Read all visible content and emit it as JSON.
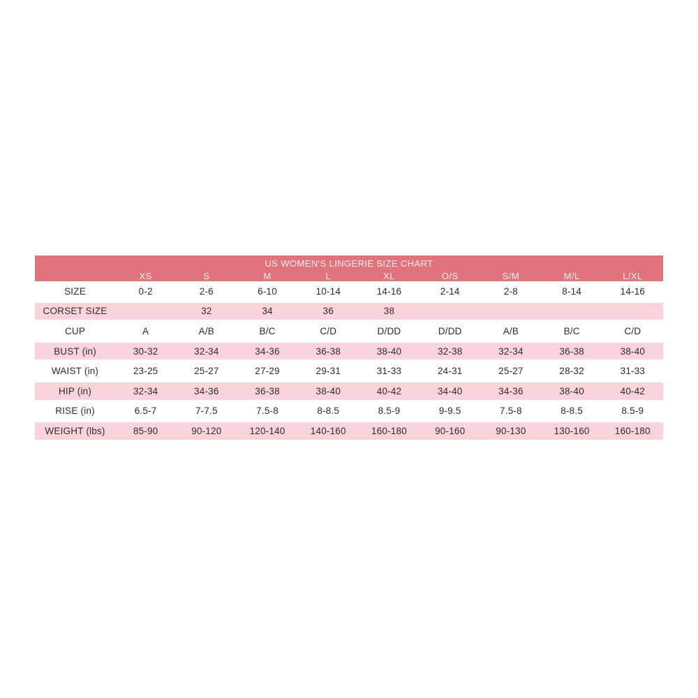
{
  "title": "US WOMEN'S LINGERIE SIZE CHART",
  "colors": {
    "header_bg": "#e1737c",
    "header_text": "#fbeef0",
    "stripe_bg": "#f9d4da",
    "body_text": "#2e2c2d",
    "page_bg": "#ffffff"
  },
  "chart_data": {
    "type": "table",
    "title": "US WOMEN'S LINGERIE SIZE CHART",
    "columns": [
      "",
      "XS",
      "S",
      "M",
      "L",
      "XL",
      "O/S",
      "S/M",
      "M/L",
      "L/XL"
    ],
    "rows": [
      {
        "label": "SIZE",
        "striped": false,
        "values": [
          "0-2",
          "2-6",
          "6-10",
          "10-14",
          "14-16",
          "2-14",
          "2-8",
          "8-14",
          "14-16"
        ]
      },
      {
        "label": "CORSET SIZE",
        "striped": true,
        "values": [
          "",
          "32",
          "34",
          "36",
          "38",
          "",
          "",
          "",
          ""
        ]
      },
      {
        "label": "CUP",
        "striped": false,
        "values": [
          "A",
          "A/B",
          "B/C",
          "C/D",
          "D/DD",
          "D/DD",
          "A/B",
          "B/C",
          "C/D"
        ]
      },
      {
        "label": "BUST (in)",
        "striped": true,
        "values": [
          "30-32",
          "32-34",
          "34-36",
          "36-38",
          "38-40",
          "32-38",
          "32-34",
          "36-38",
          "38-40"
        ]
      },
      {
        "label": "WAIST (in)",
        "striped": false,
        "values": [
          "23-25",
          "25-27",
          "27-29",
          "29-31",
          "31-33",
          "24-31",
          "25-27",
          "28-32",
          "31-33"
        ]
      },
      {
        "label": "HIP (in)",
        "striped": true,
        "values": [
          "32-34",
          "34-36",
          "36-38",
          "38-40",
          "40-42",
          "34-40",
          "34-36",
          "38-40",
          "40-42"
        ]
      },
      {
        "label": "RISE (in)",
        "striped": false,
        "values": [
          "6.5-7",
          "7-7.5",
          "7.5-8",
          "8-8.5",
          "8.5-9",
          "9-9.5",
          "7.5-8",
          "8-8.5",
          "8.5-9"
        ]
      },
      {
        "label": "WEIGHT (lbs)",
        "striped": true,
        "values": [
          "85-90",
          "90-120",
          "120-140",
          "140-160",
          "160-180",
          "90-160",
          "90-130",
          "130-160",
          "160-180"
        ]
      }
    ]
  }
}
